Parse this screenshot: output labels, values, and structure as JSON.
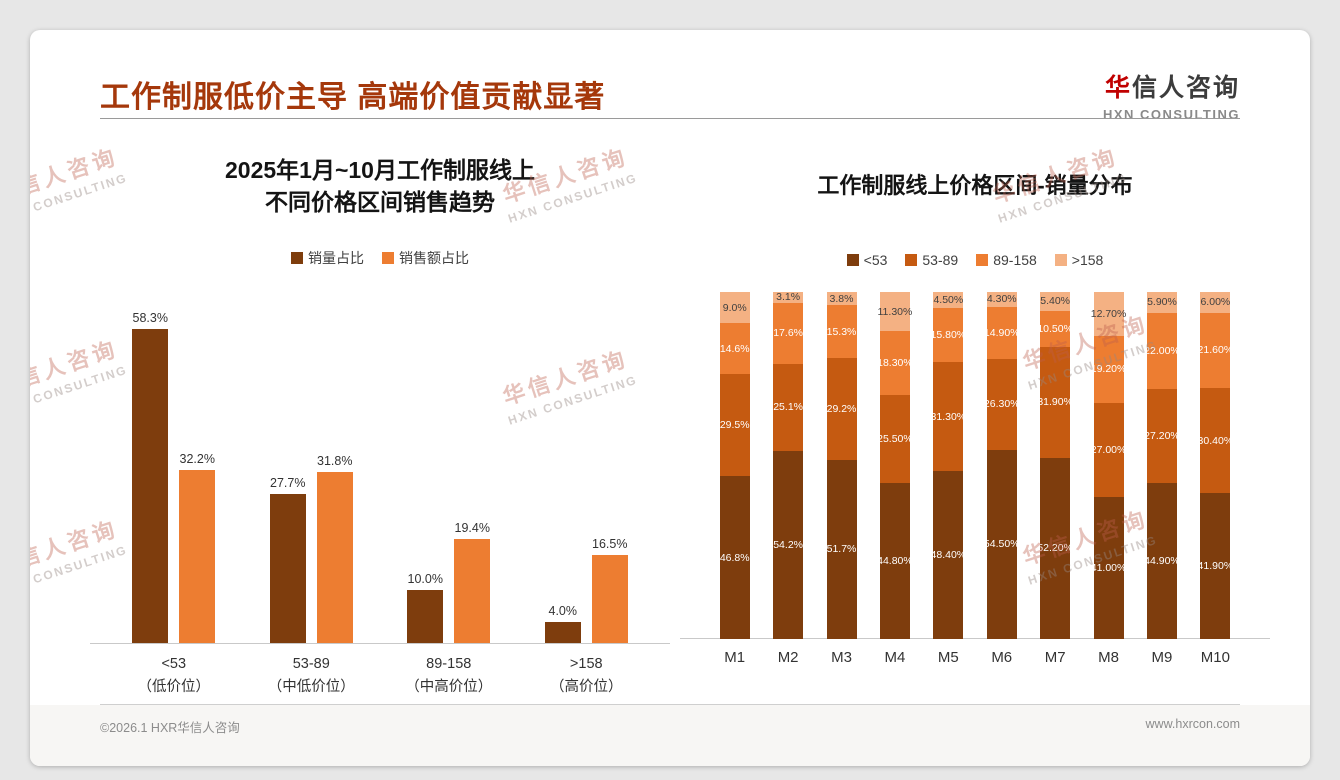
{
  "page": {
    "title": "工作制服低价主导 高端价值贡献显著",
    "logo": {
      "cn_first": "华",
      "cn_rest": "信人咨询",
      "en": "HXN CONSULTING"
    },
    "watermark": {
      "cn": "华信人咨询",
      "en": "HXN CONSULTING"
    },
    "footer": {
      "left": "©2026.1 HXR华信人咨询",
      "right": "www.hxrcon.com"
    }
  },
  "colors": {
    "title_text": "#A5380B",
    "logo_accent": "#C00000",
    "bar_dark_brown": "#7E3D0D",
    "bar_burnt_orange": "#C55A11",
    "bar_orange": "#ED7D31",
    "bar_light_peach": "#F4B183"
  },
  "chart_data": [
    {
      "type": "bar",
      "subtype": "grouped",
      "title": "2025年1月~10月工作制服线上 不同价格区间销售趋势",
      "title_lines": [
        "2025年1月~10月工作制服线上",
        "不同价格区间销售趋势"
      ],
      "categories": [
        "<53",
        "53-89",
        "89-158",
        ">158"
      ],
      "category_sublabels": [
        "（低价位）",
        "（中低价位）",
        "（中高价位）",
        "（高价位）"
      ],
      "series": [
        {
          "name": "销量占比",
          "color": "#7E3D0D",
          "values": [
            58.3,
            27.7,
            10.0,
            4.0
          ],
          "labels": [
            "58.3%",
            "27.7%",
            "10.0%",
            "4.0%"
          ]
        },
        {
          "name": "销售额占比",
          "color": "#ED7D31",
          "values": [
            32.2,
            31.8,
            19.4,
            16.5
          ],
          "labels": [
            "32.2%",
            "31.8%",
            "19.4%",
            "16.5%"
          ]
        }
      ],
      "ylim": [
        0,
        65
      ],
      "grid": false,
      "legend_position": "top",
      "value_label_suffix": "%"
    },
    {
      "type": "bar",
      "subtype": "stacked-100-percent",
      "title": "工作制服线上价格区间-销量分布",
      "categories": [
        "M1",
        "M2",
        "M3",
        "M4",
        "M5",
        "M6",
        "M7",
        "M8",
        "M9",
        "M10"
      ],
      "series": [
        {
          "name": "<53",
          "color": "#7E3D0D",
          "label_color": "#FFFFFF",
          "values": [
            46.8,
            54.2,
            51.7,
            44.8,
            48.4,
            54.5,
            52.2,
            41.0,
            44.9,
            41.9
          ],
          "labels": [
            "46.8%",
            "54.2%",
            "51.7%",
            "44.80%",
            "48.40%",
            "54.50%",
            "52.20%",
            "41.00%",
            "44.90%",
            "41.90%"
          ]
        },
        {
          "name": "53-89",
          "color": "#C55A11",
          "label_color": "#FFFFFF",
          "values": [
            29.5,
            25.1,
            29.2,
            25.5,
            31.3,
            26.3,
            31.9,
            27.0,
            27.2,
            30.4
          ],
          "labels": [
            "29.5%",
            "25.1%",
            "29.2%",
            "25.50%",
            "31.30%",
            "26.30%",
            "31.90%",
            "27.00%",
            "27.20%",
            "30.40%"
          ]
        },
        {
          "name": "89-158",
          "color": "#ED7D31",
          "label_color": "#FFFFFF",
          "values": [
            14.6,
            17.6,
            15.3,
            18.3,
            15.8,
            14.9,
            10.5,
            19.2,
            22.0,
            21.6
          ],
          "labels": [
            "14.6%",
            "17.6%",
            "15.3%",
            "18.30%",
            "15.80%",
            "14.90%",
            "10.50%",
            "19.20%",
            "22.00%",
            "21.60%"
          ]
        },
        {
          "name": ">158",
          "color": "#F4B183",
          "label_color": "#404040",
          "values": [
            9.0,
            3.1,
            3.8,
            11.3,
            4.5,
            4.3,
            5.4,
            12.7,
            5.9,
            6.0
          ],
          "labels": [
            "9.0%",
            "3.1%",
            "3.8%",
            "11.30%",
            "4.50%",
            "4.30%",
            "5.40%",
            "12.70%",
            "5.90%",
            "6.00%"
          ]
        }
      ],
      "ylim": [
        0,
        100
      ],
      "grid": false,
      "legend_position": "top"
    }
  ]
}
